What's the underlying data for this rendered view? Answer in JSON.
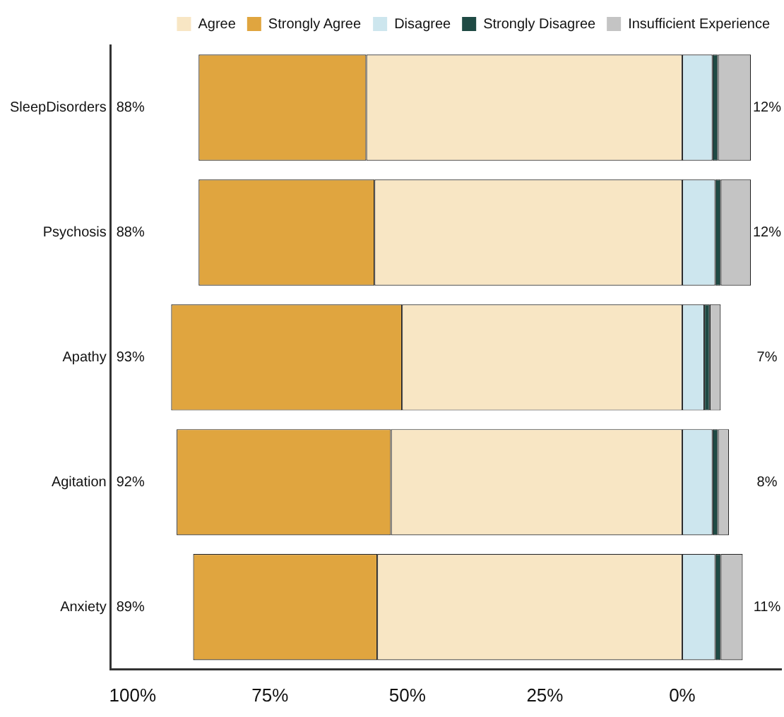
{
  "chart_data": {
    "type": "bar",
    "orientation": "horizontal",
    "stacked": true,
    "categories": [
      "SleepDisorders",
      "Psychosis",
      "Apathy",
      "Agitation",
      "Anxiety"
    ],
    "series": [
      {
        "name": "Agree",
        "color": "#f8e6c4",
        "values": [
          57.5,
          56,
          51,
          53,
          55.5
        ]
      },
      {
        "name": "Strongly Agree",
        "color": "#e0a53f",
        "values": [
          30.5,
          32,
          42,
          39,
          33.5
        ]
      },
      {
        "name": "Disagree",
        "color": "#cde6ee",
        "values": [
          -5.5,
          -6,
          -4,
          -5.5,
          -6
        ]
      },
      {
        "name": "Strongly Disagree",
        "color": "#1f4a44",
        "values": [
          -1,
          -1,
          -1,
          -1,
          -1
        ]
      },
      {
        "name": "Insufficient Experience",
        "color": "#c4c4c4",
        "values": [
          -6,
          -5.5,
          -2,
          -2,
          -4
        ]
      }
    ],
    "xlim": [
      104,
      -18
    ],
    "xticks": [
      {
        "value": 100,
        "label": "100%"
      },
      {
        "value": 75,
        "label": "75%"
      },
      {
        "value": 50,
        "label": "50%"
      },
      {
        "value": 25,
        "label": "25%"
      },
      {
        "value": 0,
        "label": "0%"
      }
    ],
    "annotations": [
      "88%",
      "88%",
      "93%",
      "92%",
      "89%",
      "12%",
      "12%",
      "7%",
      "8%",
      "11%"
    ],
    "grid": false,
    "legend": "top"
  }
}
